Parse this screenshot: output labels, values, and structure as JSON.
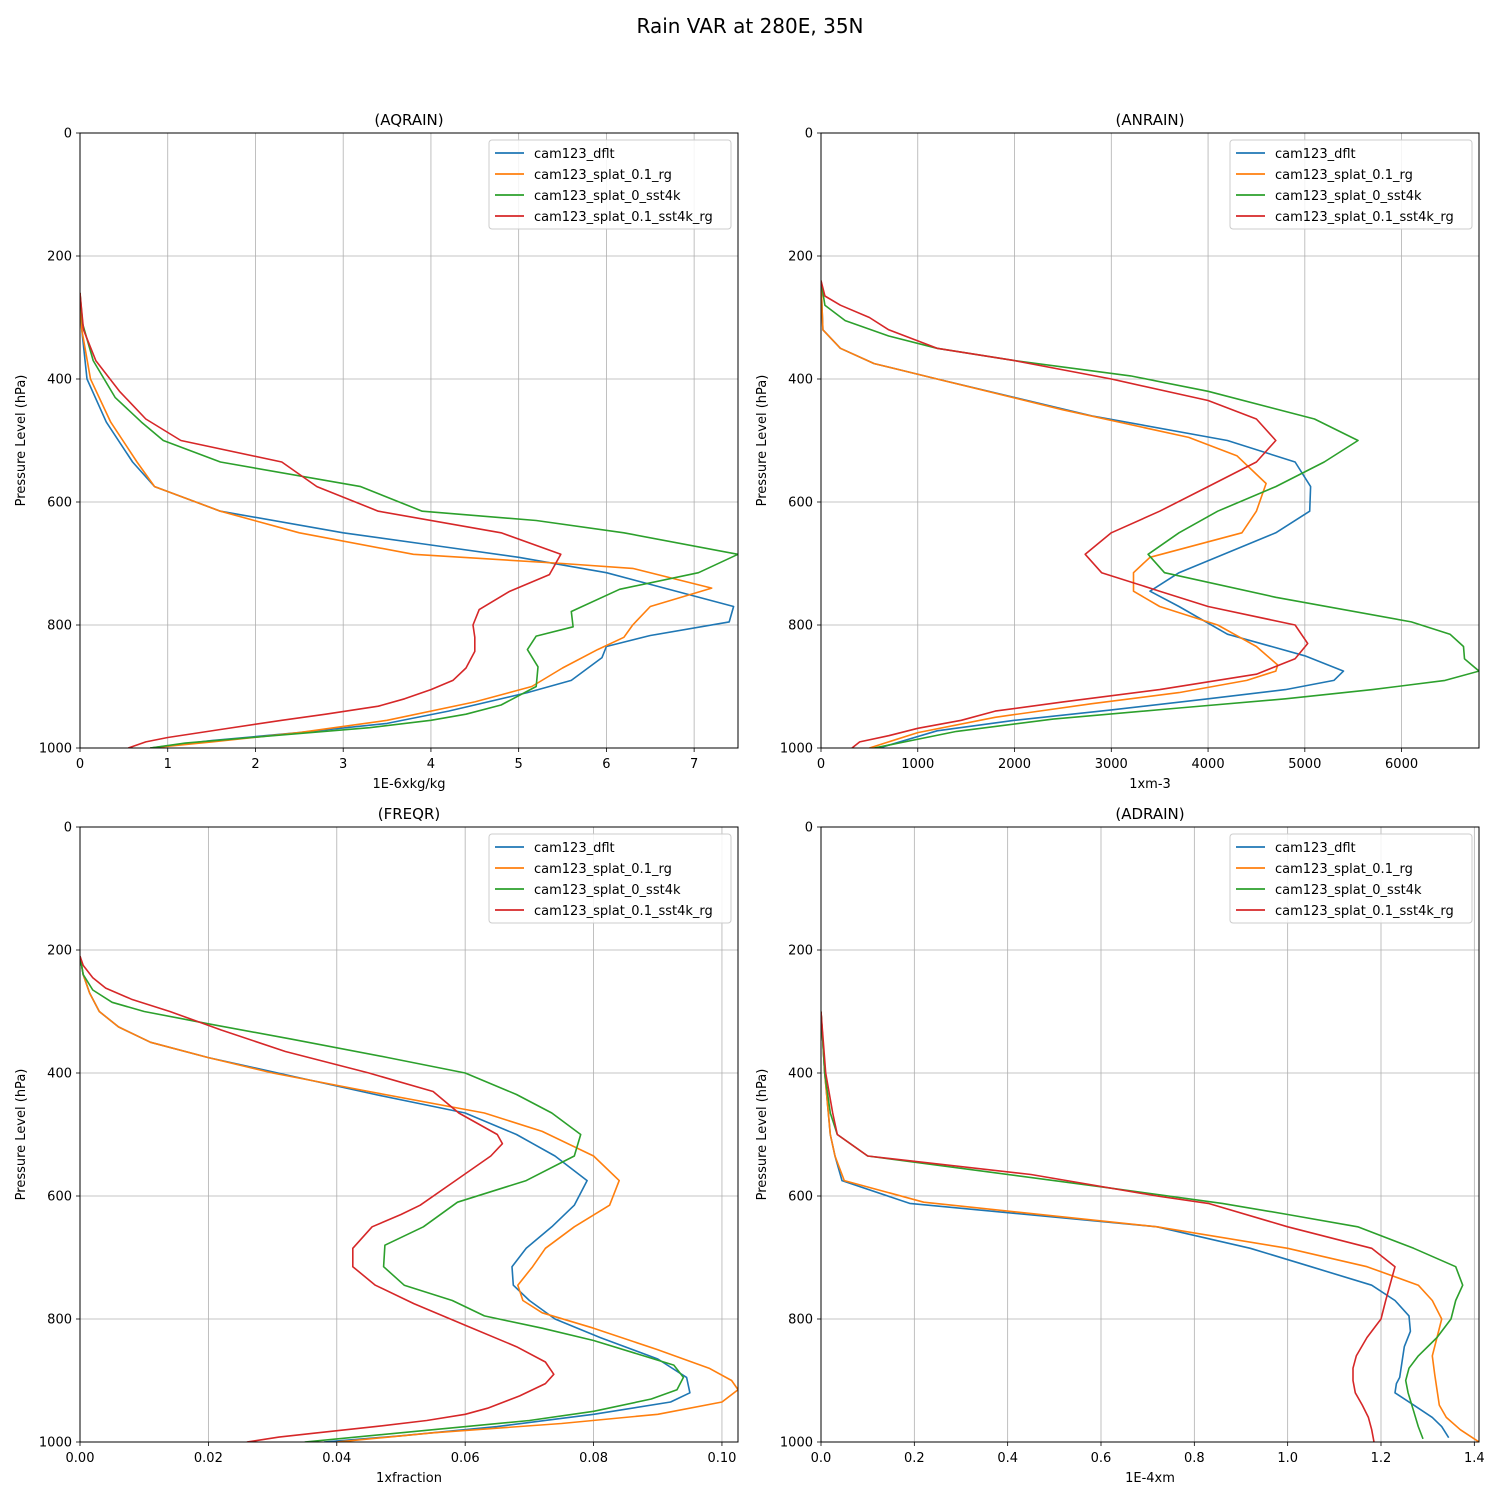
{
  "figure": {
    "title": "Rain VAR at 280E, 35N"
  },
  "chart_data": [
    {
      "type": "line",
      "title": "(AQRAIN)",
      "xlabel": "1E-6xkg/kg",
      "ylabel": "Pressure Level (hPa)",
      "xlim": [
        0,
        7.5
      ],
      "ylim": [
        1000,
        0
      ],
      "xticks": [
        0,
        1,
        2,
        3,
        4,
        5,
        6,
        7
      ],
      "yticks": [
        0,
        200,
        400,
        600,
        800,
        1000
      ],
      "grid": true,
      "legend_position": "top-right",
      "series": [
        {
          "name": "cam123_dflt",
          "color": "#1f77b4",
          "x": [
            0,
            0.02,
            0.08,
            0.3,
            0.6,
            0.85,
            1.6,
            3,
            4,
            5,
            6,
            7.45,
            7.4,
            6.5,
            6,
            5.95,
            5.6,
            5.1,
            4.2,
            3.5,
            2.5,
            1.5,
            0.8
          ],
          "y": [
            260,
            320,
            400,
            470,
            535,
            575,
            615,
            650,
            670,
            690,
            715,
            770,
            795,
            817,
            835,
            853,
            890,
            910,
            940,
            960,
            975,
            988,
            1000
          ]
        },
        {
          "name": "cam123_splat_0.1_rg",
          "color": "#ff7f0e",
          "x": [
            0,
            0.02,
            0.12,
            0.35,
            0.65,
            0.85,
            1.6,
            2.5,
            3.8,
            5.5,
            6.3,
            7.2,
            6.5,
            6.3,
            6.2,
            5.9,
            5.5,
            5.15,
            4.5,
            3.5,
            2.5,
            1.5,
            0.8
          ],
          "y": [
            260,
            320,
            400,
            470,
            535,
            575,
            615,
            650,
            685,
            700,
            708,
            740,
            770,
            800,
            820,
            840,
            870,
            900,
            925,
            955,
            975,
            990,
            1000
          ]
        },
        {
          "name": "cam123_splat_0_sst4k",
          "color": "#2ca02c",
          "x": [
            0,
            0.03,
            0.15,
            0.4,
            0.7,
            0.95,
            1.6,
            3.2,
            3.9,
            5.2,
            6.2,
            7.5,
            7.05,
            6.15,
            5.6,
            5.62,
            5.2,
            5.1,
            5.22,
            5.2,
            4.8,
            4.4,
            4.0,
            3.3,
            2.2,
            1.2,
            0.8
          ],
          "y": [
            260,
            310,
            370,
            430,
            470,
            500,
            535,
            575,
            615,
            630,
            650,
            685,
            715,
            742,
            778,
            803,
            818,
            840,
            868,
            900,
            930,
            945,
            955,
            967,
            980,
            992,
            1000
          ]
        },
        {
          "name": "cam123_splat_0.1_sst4k_rg",
          "color": "#d62728",
          "x": [
            0,
            0.04,
            0.18,
            0.45,
            0.75,
            1.15,
            2.3,
            2.7,
            3.4,
            4.8,
            5.48,
            5.35,
            4.9,
            4.55,
            4.48,
            4.5,
            4.5,
            4.4,
            4.25,
            4.0,
            3.7,
            3.4,
            2.8,
            2.3,
            1.6,
            1.0,
            0.75,
            0.55
          ],
          "y": [
            260,
            320,
            370,
            420,
            465,
            500,
            535,
            575,
            615,
            650,
            685,
            718,
            745,
            775,
            800,
            820,
            843,
            870,
            890,
            905,
            920,
            932,
            945,
            955,
            970,
            983,
            990,
            1000
          ]
        }
      ]
    },
    {
      "type": "line",
      "title": "(ANRAIN)",
      "xlabel": "1xm-3",
      "ylabel": "Pressure Level (hPa)",
      "xlim": [
        0,
        6800
      ],
      "ylim": [
        1000,
        0
      ],
      "xticks": [
        0,
        1000,
        2000,
        3000,
        4000,
        5000,
        6000
      ],
      "yticks": [
        0,
        200,
        400,
        600,
        800,
        1000
      ],
      "grid": true,
      "legend_position": "top-right",
      "series": [
        {
          "name": "cam123_dflt",
          "color": "#1f77b4",
          "x": [
            0,
            20,
            200,
            550,
            1200,
            2800,
            4200,
            4900,
            5060,
            5050,
            4700,
            3700,
            3400,
            3700,
            4200,
            5000,
            5400,
            5300,
            4800,
            4000,
            3000,
            2000,
            1200,
            600
          ],
          "y": [
            240,
            320,
            350,
            375,
            400,
            460,
            500,
            535,
            575,
            615,
            650,
            715,
            745,
            770,
            815,
            850,
            875,
            890,
            905,
            920,
            938,
            955,
            972,
            1000
          ]
        },
        {
          "name": "cam123_splat_0.1_rg",
          "color": "#ff7f0e",
          "x": [
            0,
            20,
            200,
            550,
            1200,
            2500,
            3800,
            4300,
            4600,
            4500,
            4350,
            3400,
            3230,
            3230,
            3500,
            4100,
            4500,
            4720,
            4700,
            4400,
            3700,
            2800,
            1800,
            1000,
            500
          ],
          "y": [
            240,
            320,
            350,
            375,
            400,
            450,
            495,
            525,
            570,
            615,
            650,
            690,
            715,
            745,
            770,
            800,
            835,
            865,
            875,
            890,
            910,
            928,
            950,
            975,
            1000
          ]
        },
        {
          "name": "cam123_splat_0_sst4k",
          "color": "#2ca02c",
          "x": [
            0,
            40,
            250,
            700,
            1200,
            2000,
            3200,
            4000,
            5100,
            5550,
            5200,
            4700,
            4100,
            3700,
            3380,
            3550,
            4700,
            6100,
            6500,
            6640,
            6650,
            6800,
            6450,
            5700,
            4800,
            3700,
            2400,
            1400,
            550
          ],
          "y": [
            240,
            280,
            305,
            330,
            350,
            370,
            395,
            420,
            465,
            500,
            535,
            575,
            615,
            650,
            685,
            715,
            755,
            795,
            815,
            835,
            855,
            875,
            890,
            905,
            920,
            935,
            953,
            973,
            1000
          ]
        },
        {
          "name": "cam123_splat_0.1_sst4k_rg",
          "color": "#d62728",
          "x": [
            0,
            40,
            200,
            500,
            700,
            1200,
            2000,
            3000,
            4000,
            4500,
            4700,
            4500,
            4000,
            3500,
            3000,
            2730,
            2900,
            3500,
            4000,
            4900,
            5030,
            4900,
            4500,
            3500,
            2500,
            1800,
            1450,
            1000,
            700,
            400,
            320
          ],
          "y": [
            240,
            265,
            280,
            300,
            320,
            350,
            370,
            400,
            435,
            465,
            500,
            535,
            575,
            615,
            650,
            685,
            715,
            745,
            770,
            800,
            830,
            855,
            880,
            905,
            925,
            940,
            955,
            968,
            980,
            990,
            1000
          ]
        }
      ]
    },
    {
      "type": "line",
      "title": "(FREQR)",
      "xlabel": "1xfraction",
      "ylabel": "Pressure Level (hPa)",
      "xlim": [
        0,
        0.1025
      ],
      "ylim": [
        1000,
        0
      ],
      "xticks": [
        0,
        0.02,
        0.04,
        0.06,
        0.08,
        0.1
      ],
      "yticks": [
        0,
        200,
        400,
        600,
        800,
        1000
      ],
      "grid": true,
      "legend_position": "top-right",
      "series": [
        {
          "name": "cam123_dflt",
          "color": "#1f77b4",
          "x": [
            0,
            0.0005,
            0.0015,
            0.003,
            0.006,
            0.011,
            0.02,
            0.033,
            0.046,
            0.06,
            0.068,
            0.074,
            0.079,
            0.077,
            0.0735,
            0.0695,
            0.0673,
            0.0675,
            0.07,
            0.074,
            0.081,
            0.09,
            0.0945,
            0.095,
            0.092,
            0.08,
            0.065,
            0.05,
            0.038
          ],
          "y": [
            210,
            240,
            270,
            300,
            325,
            350,
            375,
            405,
            435,
            465,
            500,
            535,
            575,
            615,
            650,
            685,
            715,
            745,
            770,
            800,
            830,
            865,
            895,
            920,
            935,
            955,
            975,
            990,
            1000
          ]
        },
        {
          "name": "cam123_splat_0.1_rg",
          "color": "#ff7f0e",
          "x": [
            0,
            0.0005,
            0.0015,
            0.003,
            0.006,
            0.011,
            0.02,
            0.03,
            0.045,
            0.063,
            0.072,
            0.08,
            0.084,
            0.0825,
            0.077,
            0.0725,
            0.0705,
            0.0682,
            0.069,
            0.072,
            0.08,
            0.09,
            0.098,
            0.1015,
            0.1025,
            0.1,
            0.09,
            0.075,
            0.055,
            0.04
          ],
          "y": [
            210,
            240,
            270,
            300,
            325,
            350,
            375,
            400,
            430,
            465,
            495,
            535,
            575,
            615,
            650,
            685,
            715,
            745,
            770,
            790,
            815,
            850,
            880,
            900,
            915,
            935,
            955,
            970,
            985,
            1000
          ]
        },
        {
          "name": "cam123_splat_0_sst4k",
          "color": "#2ca02c",
          "x": [
            0,
            0.0005,
            0.002,
            0.005,
            0.01,
            0.02,
            0.033,
            0.048,
            0.06,
            0.068,
            0.0735,
            0.078,
            0.077,
            0.0695,
            0.0588,
            0.0535,
            0.0475,
            0.0473,
            0.0505,
            0.058,
            0.063,
            0.072,
            0.08,
            0.0925,
            0.094,
            0.093,
            0.089,
            0.08,
            0.07,
            0.055,
            0.035
          ],
          "y": [
            210,
            240,
            265,
            285,
            300,
            320,
            345,
            375,
            400,
            435,
            465,
            500,
            535,
            575,
            610,
            650,
            680,
            715,
            745,
            770,
            795,
            815,
            835,
            875,
            895,
            915,
            930,
            950,
            965,
            980,
            1000
          ]
        },
        {
          "name": "cam123_splat_0.1_sst4k_rg",
          "color": "#d62728",
          "x": [
            0,
            0.0005,
            0.002,
            0.004,
            0.008,
            0.014,
            0.022,
            0.032,
            0.045,
            0.055,
            0.059,
            0.065,
            0.0658,
            0.064,
            0.0585,
            0.053,
            0.05,
            0.0455,
            0.0425,
            0.0425,
            0.046,
            0.052,
            0.06,
            0.068,
            0.0725,
            0.0738,
            0.0725,
            0.0685,
            0.0635,
            0.06,
            0.054,
            0.046,
            0.037,
            0.031,
            0.026
          ],
          "y": [
            210,
            225,
            245,
            262,
            280,
            300,
            330,
            365,
            400,
            430,
            465,
            500,
            515,
            535,
            575,
            615,
            630,
            650,
            685,
            715,
            745,
            775,
            810,
            845,
            870,
            890,
            905,
            925,
            945,
            955,
            965,
            975,
            985,
            992,
            1000
          ]
        }
      ]
    },
    {
      "type": "line",
      "title": "(ADRAIN)",
      "xlabel": "1E-4xm",
      "ylabel": "Pressure Level (hPa)",
      "xlim": [
        0,
        1.41
      ],
      "ylim": [
        1000,
        0
      ],
      "xticks": [
        0,
        0.2,
        0.4,
        0.6,
        0.8,
        1.0,
        1.2,
        1.4
      ],
      "yticks": [
        0,
        200,
        400,
        600,
        800,
        1000
      ],
      "grid": true,
      "legend_position": "top-right",
      "series": [
        {
          "name": "cam123_dflt",
          "color": "#1f77b4",
          "x": [
            0,
            0.008,
            0.02,
            0.03,
            0.045,
            0.19,
            0.72,
            0.92,
            1.05,
            1.18,
            1.23,
            1.26,
            1.263,
            1.25,
            1.245,
            1.24,
            1.233,
            1.23,
            1.27,
            1.31,
            1.33,
            1.345
          ],
          "y": [
            300,
            400,
            500,
            535,
            575,
            612,
            650,
            685,
            715,
            745,
            770,
            795,
            820,
            845,
            870,
            895,
            905,
            920,
            940,
            960,
            975,
            993
          ]
        },
        {
          "name": "cam123_splat_0.1_rg",
          "color": "#ff7f0e",
          "x": [
            0,
            0.008,
            0.02,
            0.03,
            0.05,
            0.22,
            0.72,
            1.0,
            1.17,
            1.28,
            1.31,
            1.33,
            1.32,
            1.31,
            1.315,
            1.32,
            1.325,
            1.34,
            1.37,
            1.41
          ],
          "y": [
            300,
            400,
            500,
            535,
            575,
            610,
            650,
            685,
            715,
            745,
            770,
            800,
            830,
            860,
            890,
            915,
            940,
            960,
            980,
            1000
          ]
        },
        {
          "name": "cam123_splat_0_sst4k",
          "color": "#2ca02c",
          "x": [
            0,
            0.008,
            0.02,
            0.035,
            0.1,
            0.6,
            0.86,
            1.0,
            1.15,
            1.27,
            1.36,
            1.375,
            1.36,
            1.35,
            1.32,
            1.28,
            1.26,
            1.253,
            1.258,
            1.27,
            1.28,
            1.29
          ],
          "y": [
            300,
            400,
            465,
            500,
            535,
            585,
            612,
            630,
            650,
            685,
            715,
            745,
            770,
            800,
            830,
            860,
            880,
            900,
            920,
            950,
            975,
            995
          ]
        },
        {
          "name": "cam123_splat_0.1_sst4k_rg",
          "color": "#d62728",
          "x": [
            0,
            0.01,
            0.025,
            0.035,
            0.1,
            0.45,
            0.72,
            0.83,
            1.0,
            1.18,
            1.23,
            1.21,
            1.2,
            1.17,
            1.147,
            1.14,
            1.14,
            1.145,
            1.16,
            1.173,
            1.18,
            1.185
          ],
          "y": [
            300,
            400,
            465,
            500,
            535,
            565,
            600,
            612,
            650,
            685,
            715,
            770,
            800,
            830,
            860,
            880,
            900,
            920,
            940,
            960,
            980,
            1000
          ]
        }
      ]
    }
  ]
}
